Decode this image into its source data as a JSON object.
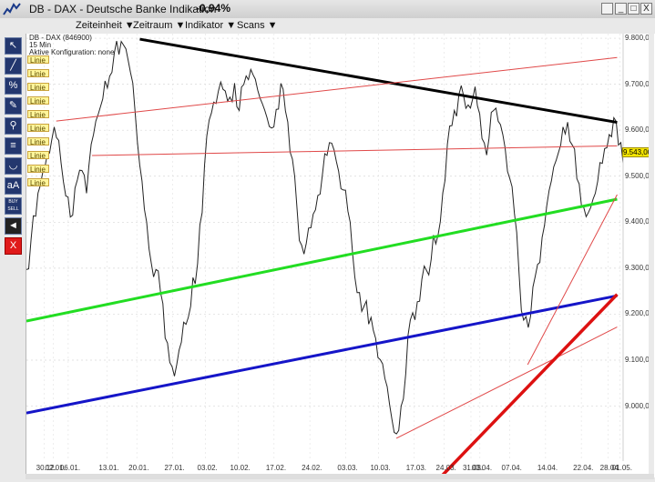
{
  "window": {
    "title": "DB - DAX - Deutsche Banke Indikation",
    "change": "-0,94%",
    "buttons": {
      "folder": "",
      "minimize": "_",
      "maximize": "□",
      "close": "X"
    }
  },
  "menu": [
    {
      "label": "Zeiteinheit ▼"
    },
    {
      "label": "Zeitraum ▼"
    },
    {
      "label": "Indikator ▼"
    },
    {
      "label": "Scans ▼"
    }
  ],
  "chart_info": {
    "symbol": "DB - DAX (846900)",
    "interval": "15 Min",
    "config": "Aktive Konfiguration: none"
  },
  "toolbar": [
    {
      "icon": "cursor-icon",
      "glyph": "↖"
    },
    {
      "icon": "trendline-icon",
      "glyph": "╱"
    },
    {
      "icon": "percent-icon",
      "glyph": "%"
    },
    {
      "icon": "pencil-icon",
      "glyph": "✎"
    },
    {
      "icon": "magnifier-icon",
      "glyph": "⚲"
    },
    {
      "icon": "fibonacci-icon",
      "glyph": "≡"
    },
    {
      "icon": "arc-icon",
      "glyph": "◡"
    },
    {
      "icon": "text-icon",
      "glyph": "aA"
    },
    {
      "icon": "buy-sell-icon",
      "glyph": "BUY SELL"
    },
    {
      "icon": "speaker-icon",
      "glyph": "◄"
    },
    {
      "icon": "delete-icon",
      "glyph": "X"
    }
  ],
  "line_tags": [
    "Linie",
    "Linie",
    "Linie",
    "Linie",
    "Linie",
    "Linie",
    "Linie",
    "Linie",
    "Linie",
    "Linie"
  ],
  "price_label": "9.543,00",
  "colors": {
    "background": "#ffffff",
    "price": "#222222",
    "resistance": "#000000",
    "channel_top": "#e04848",
    "green": "#22dd22",
    "blue": "#1515c8",
    "red": "#dd1111",
    "price_box": "#f5e600"
  },
  "chart_data": {
    "type": "line",
    "title": "DB - DAX (846900)",
    "y_ticks": [
      "9.800,00",
      "9.700,00",
      "9.600,00",
      "9.500,00",
      "9.400,00",
      "9.300,00",
      "9.200,00",
      "9.100,00",
      "9.000,00"
    ],
    "ylim": [
      8920,
      9810
    ],
    "x_ticks": [
      "30.12.",
      "02.01.",
      "06.01.",
      "13.01.",
      "20.01.",
      "27.01.",
      "03.02.",
      "10.02.",
      "17.02.",
      "24.02.",
      "03.03.",
      "10.03.",
      "17.03.",
      "24.03.",
      "31.03.",
      "03.04.",
      "07.04.",
      "14.04.",
      "22.04.",
      "28.04.",
      "01.05."
    ],
    "series": [
      {
        "values": [
          9285,
          9360,
          9420,
          9470,
          9520,
          9560,
          9600,
          9580,
          9500,
          9450,
          9420,
          9480,
          9510,
          9470,
          9560,
          9620,
          9660,
          9700,
          9720,
          9780,
          9760,
          9790,
          9740,
          9700,
          9580,
          9480,
          9400,
          9320,
          9290,
          9250,
          9160,
          9090,
          9070,
          9110,
          9180,
          9200,
          9270,
          9310,
          9430,
          9580,
          9640,
          9670,
          9700,
          9690,
          9660,
          9700,
          9650,
          9690,
          9710,
          9730,
          9680,
          9660,
          9640,
          9600,
          9650,
          9690,
          9640,
          9560,
          9490,
          9360,
          9340,
          9380,
          9420,
          9470,
          9500,
          9550,
          9560,
          9530,
          9480,
          9460,
          9400,
          9290,
          9240,
          9220,
          9190,
          9160,
          9110,
          9080,
          9040,
          8980,
          8930,
          9000,
          9080,
          9180,
          9190,
          9240,
          9300,
          9290,
          9360,
          9370,
          9470,
          9560,
          9610,
          9640,
          9690,
          9650,
          9660,
          9690,
          9640,
          9560,
          9580,
          9650,
          9610,
          9590,
          9520,
          9470,
          9380,
          9220,
          9190,
          9200,
          9270,
          9310,
          9400,
          9460,
          9520,
          9560,
          9600,
          9620,
          9580,
          9490,
          9440,
          9400,
          9430,
          9470,
          9520,
          9560,
          9600,
          9620,
          9570,
          9540
        ]
      }
    ],
    "trendlines": [
      {
        "name": "resistance",
        "color": "#000000",
        "from": [
          0.19,
          9798
        ],
        "to": [
          0.99,
          9617
        ]
      },
      {
        "name": "channel-top-red",
        "color": "#e04848",
        "from": [
          0.05,
          9620
        ],
        "to": [
          0.99,
          9758
        ]
      },
      {
        "name": "horizontal-red",
        "color": "#e04848",
        "from": [
          0.11,
          9545
        ],
        "to": [
          0.99,
          9566
        ]
      },
      {
        "name": "green-channel",
        "color": "#22dd22",
        "from": [
          0.0,
          9185
        ],
        "to": [
          0.99,
          9450
        ]
      },
      {
        "name": "blue-support",
        "color": "#1515c8",
        "from": [
          0.0,
          8985
        ],
        "to": [
          0.99,
          9240
        ]
      },
      {
        "name": "red-thin-bottom",
        "color": "#e04848",
        "from": [
          0.62,
          8930
        ],
        "to": [
          0.99,
          9172
        ]
      },
      {
        "name": "red-thick",
        "color": "#dd1111",
        "from": [
          0.69,
          8840
        ],
        "to": [
          0.99,
          9243
        ]
      },
      {
        "name": "red-thin-steep",
        "color": "#e04848",
        "from": [
          0.84,
          9090
        ],
        "to": [
          0.99,
          9460
        ]
      }
    ]
  }
}
